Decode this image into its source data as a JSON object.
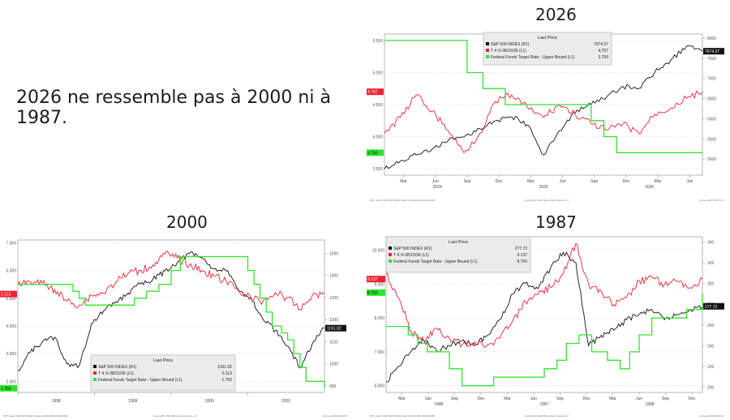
{
  "headline": "2026 ne ressemble pas à 2000 ni à 1987.",
  "colors": {
    "sp500": "#111111",
    "treasury": "#ee2233",
    "fedfunds": "#2ee52e"
  },
  "chart_data": [
    {
      "title": "2026",
      "type": "line",
      "legend": {
        "header": "Last Price",
        "placement": "top-center"
      },
      "left_axis": {
        "ylim": [
          3.4,
          5.6
        ],
        "ticks": [
          "3.500",
          "4.000",
          "4.500",
          "5.000",
          "5.500"
        ]
      },
      "right_axis": {
        "ylim": [
          4600,
          8100
        ],
        "ticks": [
          "5000",
          "5500",
          "6000",
          "6500",
          "7000",
          "7500",
          "8000"
        ]
      },
      "x_ticks": [
        "Mar",
        "Jun",
        "Sep",
        "Dec",
        "Mar",
        "Jun",
        "Sep",
        "Dec",
        "Mar",
        "Jun"
      ],
      "x_year_labels": [
        "2024",
        "2025",
        "2026"
      ],
      "footer_left": "SPX Index (S&P 500 INDEX) Daily 01JAN2024-24AUG2026",
      "footer_center": "Copyright© 2026 Bloomberg Finance L.P.",
      "footer_right": "24-Aug-2026 09:27:01",
      "series": [
        {
          "name": "S&P 500 INDEX  (R1)",
          "value": "7674.37",
          "axis": "right",
          "color_key": "sp500",
          "x": [
            0,
            0.05,
            0.1,
            0.15,
            0.2,
            0.25,
            0.3,
            0.35,
            0.4,
            0.45,
            0.5,
            0.55,
            0.6,
            0.65,
            0.7,
            0.75,
            0.8,
            0.85,
            0.9,
            0.95,
            1
          ],
          "y": [
            4750,
            4950,
            5100,
            5250,
            5450,
            5550,
            5750,
            5950,
            6050,
            5850,
            5100,
            5700,
            6150,
            6350,
            6550,
            6800,
            6750,
            7150,
            7450,
            7800,
            7674
          ]
        },
        {
          "name": "T 4 ⅝ 08/15/36  (L1)",
          "value": "4.707",
          "axis": "left",
          "color_key": "treasury",
          "x": [
            0,
            0.05,
            0.1,
            0.15,
            0.2,
            0.25,
            0.3,
            0.35,
            0.4,
            0.45,
            0.5,
            0.55,
            0.6,
            0.65,
            0.7,
            0.75,
            0.8,
            0.85,
            0.9,
            0.95,
            1
          ],
          "y": [
            4.05,
            4.3,
            4.65,
            4.4,
            4.1,
            3.75,
            4.05,
            4.55,
            4.65,
            4.45,
            4.3,
            4.5,
            4.35,
            4.2,
            4.1,
            4.2,
            4.05,
            4.35,
            4.45,
            4.6,
            4.7
          ]
        },
        {
          "name": "Federal Funds Target Rate - Upper Bound  (L1)",
          "value": "3.750",
          "axis": "left",
          "color_key": "fedfunds",
          "step": true,
          "x": [
            0,
            0.26,
            0.31,
            0.38,
            0.62,
            0.65,
            0.69,
            0.73,
            1
          ],
          "y": [
            5.5,
            5.0,
            4.75,
            4.5,
            4.5,
            4.25,
            4.0,
            3.75,
            3.75
          ]
        }
      ]
    },
    {
      "title": "2000",
      "type": "line",
      "legend": {
        "header": "Last Price",
        "placement": "bottom-center"
      },
      "left_axis": {
        "ylim": [
          1.6,
          7.1
        ],
        "ticks": [
          "2.000",
          "3.000",
          "4.000",
          "5.000",
          "6.000",
          "7.000"
        ]
      },
      "right_axis": {
        "ylim": [
          870,
          1560
        ],
        "ticks": [
          "900",
          "1000",
          "1100",
          "1200",
          "1300",
          "1400",
          "1500"
        ]
      },
      "x_ticks": [],
      "x_year_labels": [
        "1998",
        "1999",
        "2000",
        "2001"
      ],
      "footer_left": "SPX Index (S&P 500 INDEX) Daily 01JAN1998-31DEC2001",
      "footer_center": "Copyright© 2026 Bloomberg Finance L.P.",
      "footer_right": "24-Aug-2026 09:24:45",
      "series": [
        {
          "name": "S&P 500 INDEX  (R1)",
          "value": "1161.02",
          "axis": "right",
          "color_key": "sp500",
          "x": [
            0,
            0.04,
            0.08,
            0.12,
            0.16,
            0.2,
            0.24,
            0.28,
            0.32,
            0.36,
            0.4,
            0.44,
            0.48,
            0.52,
            0.56,
            0.6,
            0.64,
            0.68,
            0.72,
            0.76,
            0.8,
            0.84,
            0.88,
            0.92,
            0.96,
            1
          ],
          "y": [
            970,
            1050,
            1100,
            1120,
            1000,
            990,
            1180,
            1240,
            1280,
            1320,
            1360,
            1380,
            1420,
            1460,
            1500,
            1480,
            1430,
            1420,
            1330,
            1300,
            1200,
            1150,
            1080,
            980,
            1090,
            1161
          ]
        },
        {
          "name": "T 4 ⅝ 08/15/36  (L1)",
          "value": "5.113",
          "axis": "left",
          "color_key": "treasury",
          "x": [
            0,
            0.04,
            0.08,
            0.12,
            0.16,
            0.2,
            0.24,
            0.28,
            0.32,
            0.36,
            0.4,
            0.44,
            0.48,
            0.52,
            0.56,
            0.6,
            0.64,
            0.68,
            0.72,
            0.76,
            0.8,
            0.84,
            0.88,
            0.92,
            0.96,
            1
          ],
          "y": [
            5.5,
            5.6,
            5.55,
            5.3,
            4.9,
            4.75,
            5.1,
            5.2,
            5.6,
            5.9,
            6.0,
            6.2,
            6.6,
            6.45,
            6.2,
            6.0,
            5.8,
            5.6,
            5.3,
            5.0,
            4.9,
            5.2,
            5.0,
            4.6,
            5.1,
            5.15
          ]
        },
        {
          "name": "Federal Funds Target Rate - Upper Bound  (L1)",
          "value": "1.750",
          "axis": "left",
          "color_key": "fedfunds",
          "step": true,
          "x": [
            0,
            0.18,
            0.2,
            0.22,
            0.38,
            0.42,
            0.46,
            0.5,
            0.53,
            0.75,
            0.77,
            0.79,
            0.81,
            0.83,
            0.86,
            0.88,
            0.9,
            0.92,
            0.94,
            1
          ],
          "y": [
            5.5,
            5.25,
            5.0,
            4.75,
            5.0,
            5.25,
            5.5,
            6.0,
            6.5,
            6.0,
            5.5,
            5.0,
            4.5,
            4.0,
            3.75,
            3.5,
            3.0,
            2.5,
            2.0,
            1.75
          ]
        }
      ]
    },
    {
      "title": "1987",
      "type": "line",
      "legend": {
        "header": "Last Price",
        "placement": "top-left"
      },
      "left_axis": {
        "ylim": [
          5.8,
          10.4
        ],
        "ticks": [
          "6.000",
          "7.000",
          "8.000",
          "9.000",
          "10.000"
        ]
      },
      "right_axis": {
        "ylim": [
          195,
          345
        ],
        "ticks": [
          "200",
          "220",
          "240",
          "260",
          "280",
          "300",
          "320",
          "340"
        ]
      },
      "x_ticks": [
        "Mar",
        "Jun",
        "Sep",
        "Dec",
        "Mar",
        "Jun",
        "Sep",
        "Dec",
        "Mar",
        "Jun",
        "Sep",
        "Dec"
      ],
      "x_year_labels": [
        "1986",
        "1987",
        "1988"
      ],
      "footer_left": "SPX Index (S&P 500 INDEX) Daily 01JAN1986-31DEC1988",
      "footer_center": "Copyright© 2026 Bloomberg Finance L.P.",
      "footer_right": "24-Aug-2026 09:25:34",
      "series": [
        {
          "name": "S&P 500 INDEX  (R1)",
          "value": "277.72",
          "axis": "right",
          "color_key": "sp500",
          "x": [
            0,
            0.04,
            0.08,
            0.12,
            0.16,
            0.2,
            0.24,
            0.28,
            0.32,
            0.36,
            0.4,
            0.44,
            0.48,
            0.52,
            0.56,
            0.6,
            0.64,
            0.68,
            0.72,
            0.76,
            0.8,
            0.84,
            0.88,
            0.92,
            0.96,
            1
          ],
          "y": [
            205,
            220,
            235,
            245,
            235,
            240,
            245,
            240,
            250,
            265,
            290,
            300,
            295,
            315,
            330,
            320,
            240,
            250,
            255,
            265,
            270,
            275,
            265,
            270,
            275,
            278
          ]
        },
        {
          "name": "T 4 ⅝ 08/15/36  (L1)",
          "value": "9.137",
          "axis": "left",
          "color_key": "treasury",
          "x": [
            0,
            0.04,
            0.08,
            0.12,
            0.16,
            0.2,
            0.24,
            0.28,
            0.32,
            0.36,
            0.4,
            0.44,
            0.48,
            0.52,
            0.56,
            0.6,
            0.64,
            0.68,
            0.72,
            0.76,
            0.8,
            0.84,
            0.88,
            0.92,
            0.96,
            1
          ],
          "y": [
            9.3,
            8.6,
            7.6,
            7.3,
            7.7,
            7.4,
            7.2,
            7.3,
            7.2,
            7.4,
            7.9,
            8.5,
            8.7,
            8.9,
            9.3,
            10.2,
            9.0,
            8.8,
            8.4,
            8.6,
            9.1,
            9.2,
            9.0,
            9.1,
            8.9,
            9.15
          ]
        },
        {
          "name": "Federal Funds Target Rate - Upper Bound  (L1)",
          "value": "8.750",
          "axis": "left",
          "color_key": "fedfunds",
          "step": true,
          "x": [
            0,
            0.07,
            0.1,
            0.13,
            0.2,
            0.24,
            0.3,
            0.34,
            0.5,
            0.54,
            0.57,
            0.61,
            0.65,
            0.7,
            0.74,
            0.77,
            0.8,
            0.84,
            0.95,
            1
          ],
          "y": [
            7.75,
            7.5,
            7.25,
            7.0,
            6.5,
            6.0,
            6.0,
            6.25,
            6.5,
            6.75,
            7.25,
            7.5,
            7.0,
            6.75,
            6.5,
            7.0,
            7.5,
            8.0,
            8.25,
            8.75
          ]
        }
      ]
    }
  ]
}
